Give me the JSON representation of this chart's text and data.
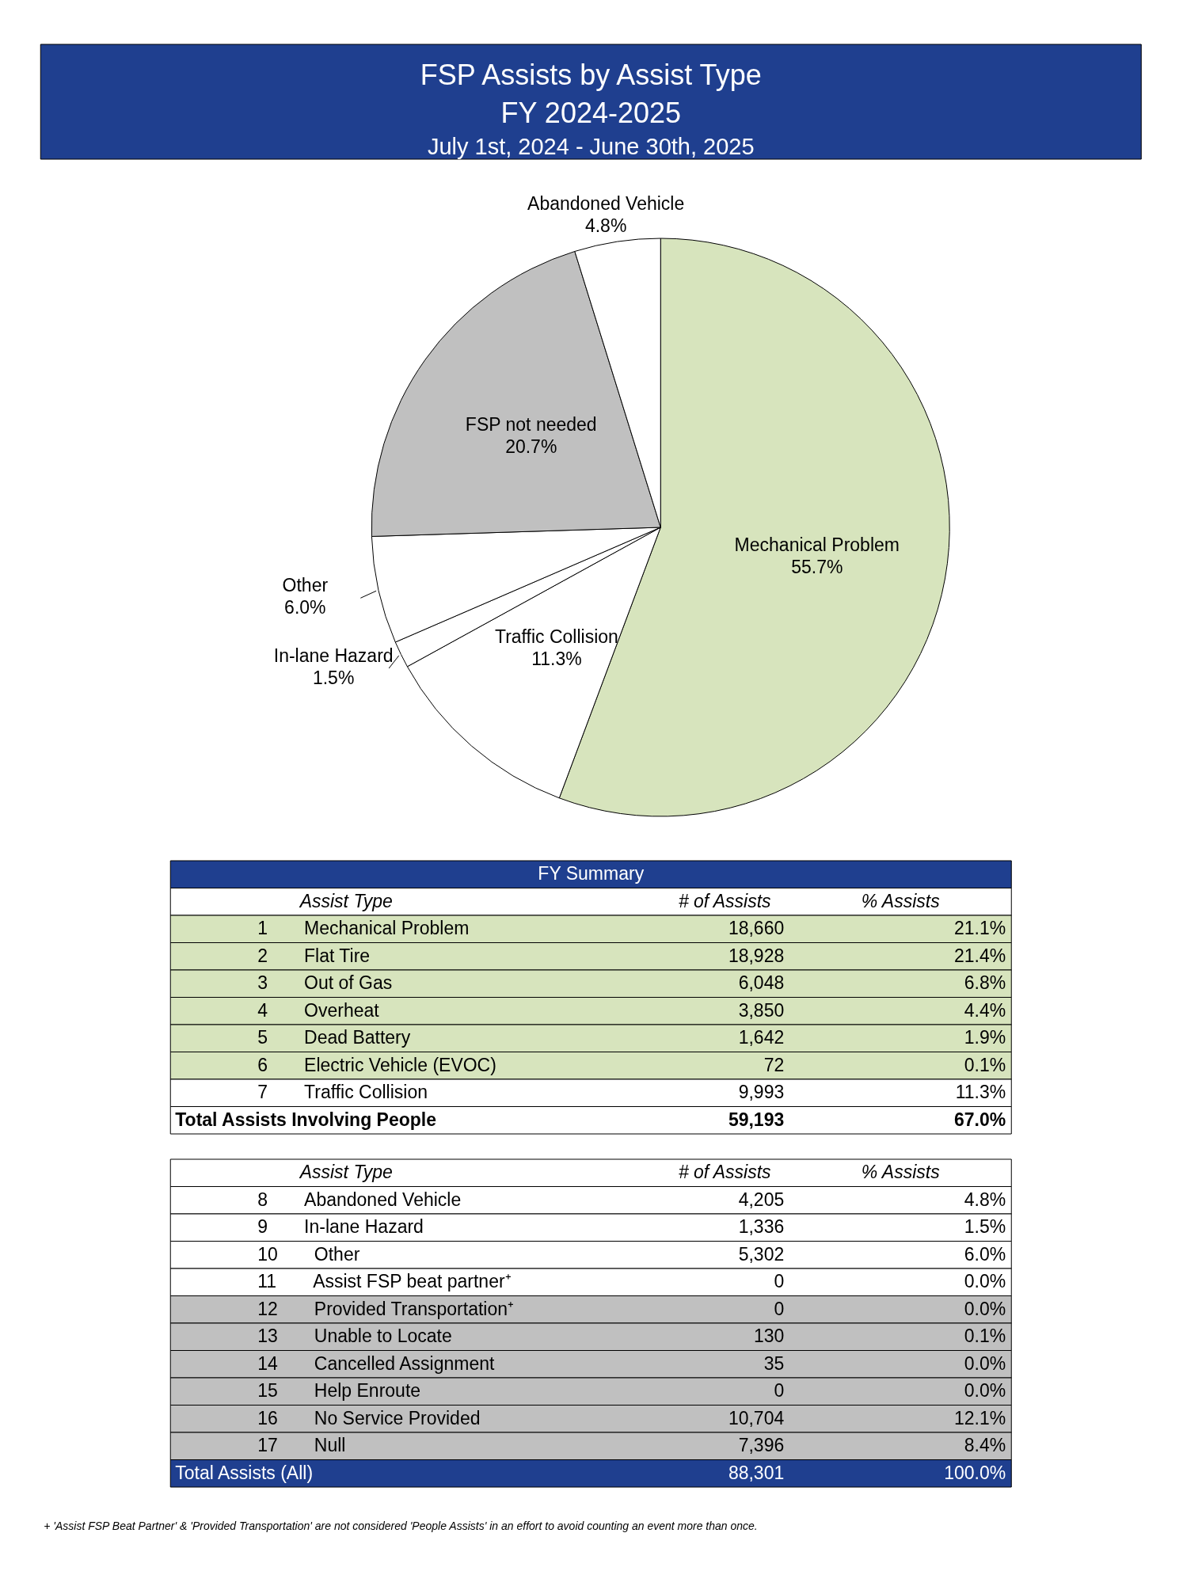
{
  "chart_data": [
    {
      "type": "pie",
      "title": "FSP Assists by Assist Type",
      "subtitle": "FY 2024-2025",
      "annotations": [
        "July 1st, 2024 - June 30th, 2025"
      ],
      "categories": [
        "Mechanical Problem",
        "Traffic Collision",
        "In-lane Hazard",
        "Other",
        "FSP not needed",
        "Abandoned Vehicle"
      ],
      "values": [
        55.7,
        11.3,
        1.5,
        6.0,
        20.7,
        4.8
      ],
      "value_labels": [
        "55.7%",
        "11.3%",
        "1.5%",
        "6.0%",
        "20.7%",
        "4.8%"
      ],
      "colors": [
        "#d7e4bd",
        "#ffffff",
        "#ffffff",
        "#ffffff",
        "#c0c0c0",
        "#ffffff"
      ]
    },
    {
      "type": "other",
      "title": "FY Summary",
      "cell_labels": [
        [
          "Assist Type",
          "# of Assists",
          "% Assists"
        ],
        [
          "1",
          "Mechanical Problem",
          "18,660",
          "21.1%"
        ],
        [
          "2",
          "Flat Tire",
          "18,928",
          "21.4%"
        ],
        [
          "3",
          "Out of Gas",
          "6,048",
          "6.8%"
        ],
        [
          "4",
          "Overheat",
          "3,850",
          "4.4%"
        ],
        [
          "5",
          "Dead Battery",
          "1,642",
          "1.9%"
        ],
        [
          "6",
          "Electric Vehicle (EVOC)",
          "72",
          "0.1%"
        ],
        [
          "7",
          "Traffic Collision",
          "9,993",
          "11.3%"
        ],
        [
          "Total Assists Involving People",
          "59,193",
          "67.0%"
        ]
      ],
      "colors": [
        "#ffffff",
        "#d7e4bd",
        "#d7e4bd",
        "#d7e4bd",
        "#d7e4bd",
        "#d7e4bd",
        "#d7e4bd",
        "#ffffff",
        "#ffffff"
      ]
    },
    {
      "type": "other",
      "cell_labels": [
        [
          "Assist Type",
          "# of Assists",
          "% Assists"
        ],
        [
          "8",
          "Abandoned Vehicle",
          "4,205",
          "4.8%"
        ],
        [
          "9",
          "In-lane Hazard",
          "1,336",
          "1.5%"
        ],
        [
          "10",
          "Other",
          "5,302",
          "6.0%"
        ],
        [
          "11",
          "Assist FSP beat partner⁺",
          "0",
          "0.0%"
        ],
        [
          "12",
          "Provided Transportation⁺",
          "0",
          "0.0%"
        ],
        [
          "13",
          "Unable to Locate",
          "130",
          "0.1%"
        ],
        [
          "14",
          "Cancelled Assignment",
          "35",
          "0.0%"
        ],
        [
          "15",
          "Help Enroute",
          "0",
          "0.0%"
        ],
        [
          "16",
          "No Service Provided",
          "10,704",
          "12.1%"
        ],
        [
          "17",
          "Null",
          "7,396",
          "8.4%"
        ],
        [
          "Total Assists (All)",
          "88,301",
          "100.0%"
        ]
      ],
      "colors": [
        "#ffffff",
        "#ffffff",
        "#ffffff",
        "#ffffff",
        "#ffffff",
        "#c0c0c0",
        "#c0c0c0",
        "#c0c0c0",
        "#c0c0c0",
        "#c0c0c0",
        "#c0c0c0",
        "#1f3f8f"
      ],
      "annotations": [
        "+ 'Assist FSP Beat Partner' & 'Provided Transportation' are not considered 'People Assists' in an effort to avoid counting an event more than once."
      ]
    }
  ]
}
